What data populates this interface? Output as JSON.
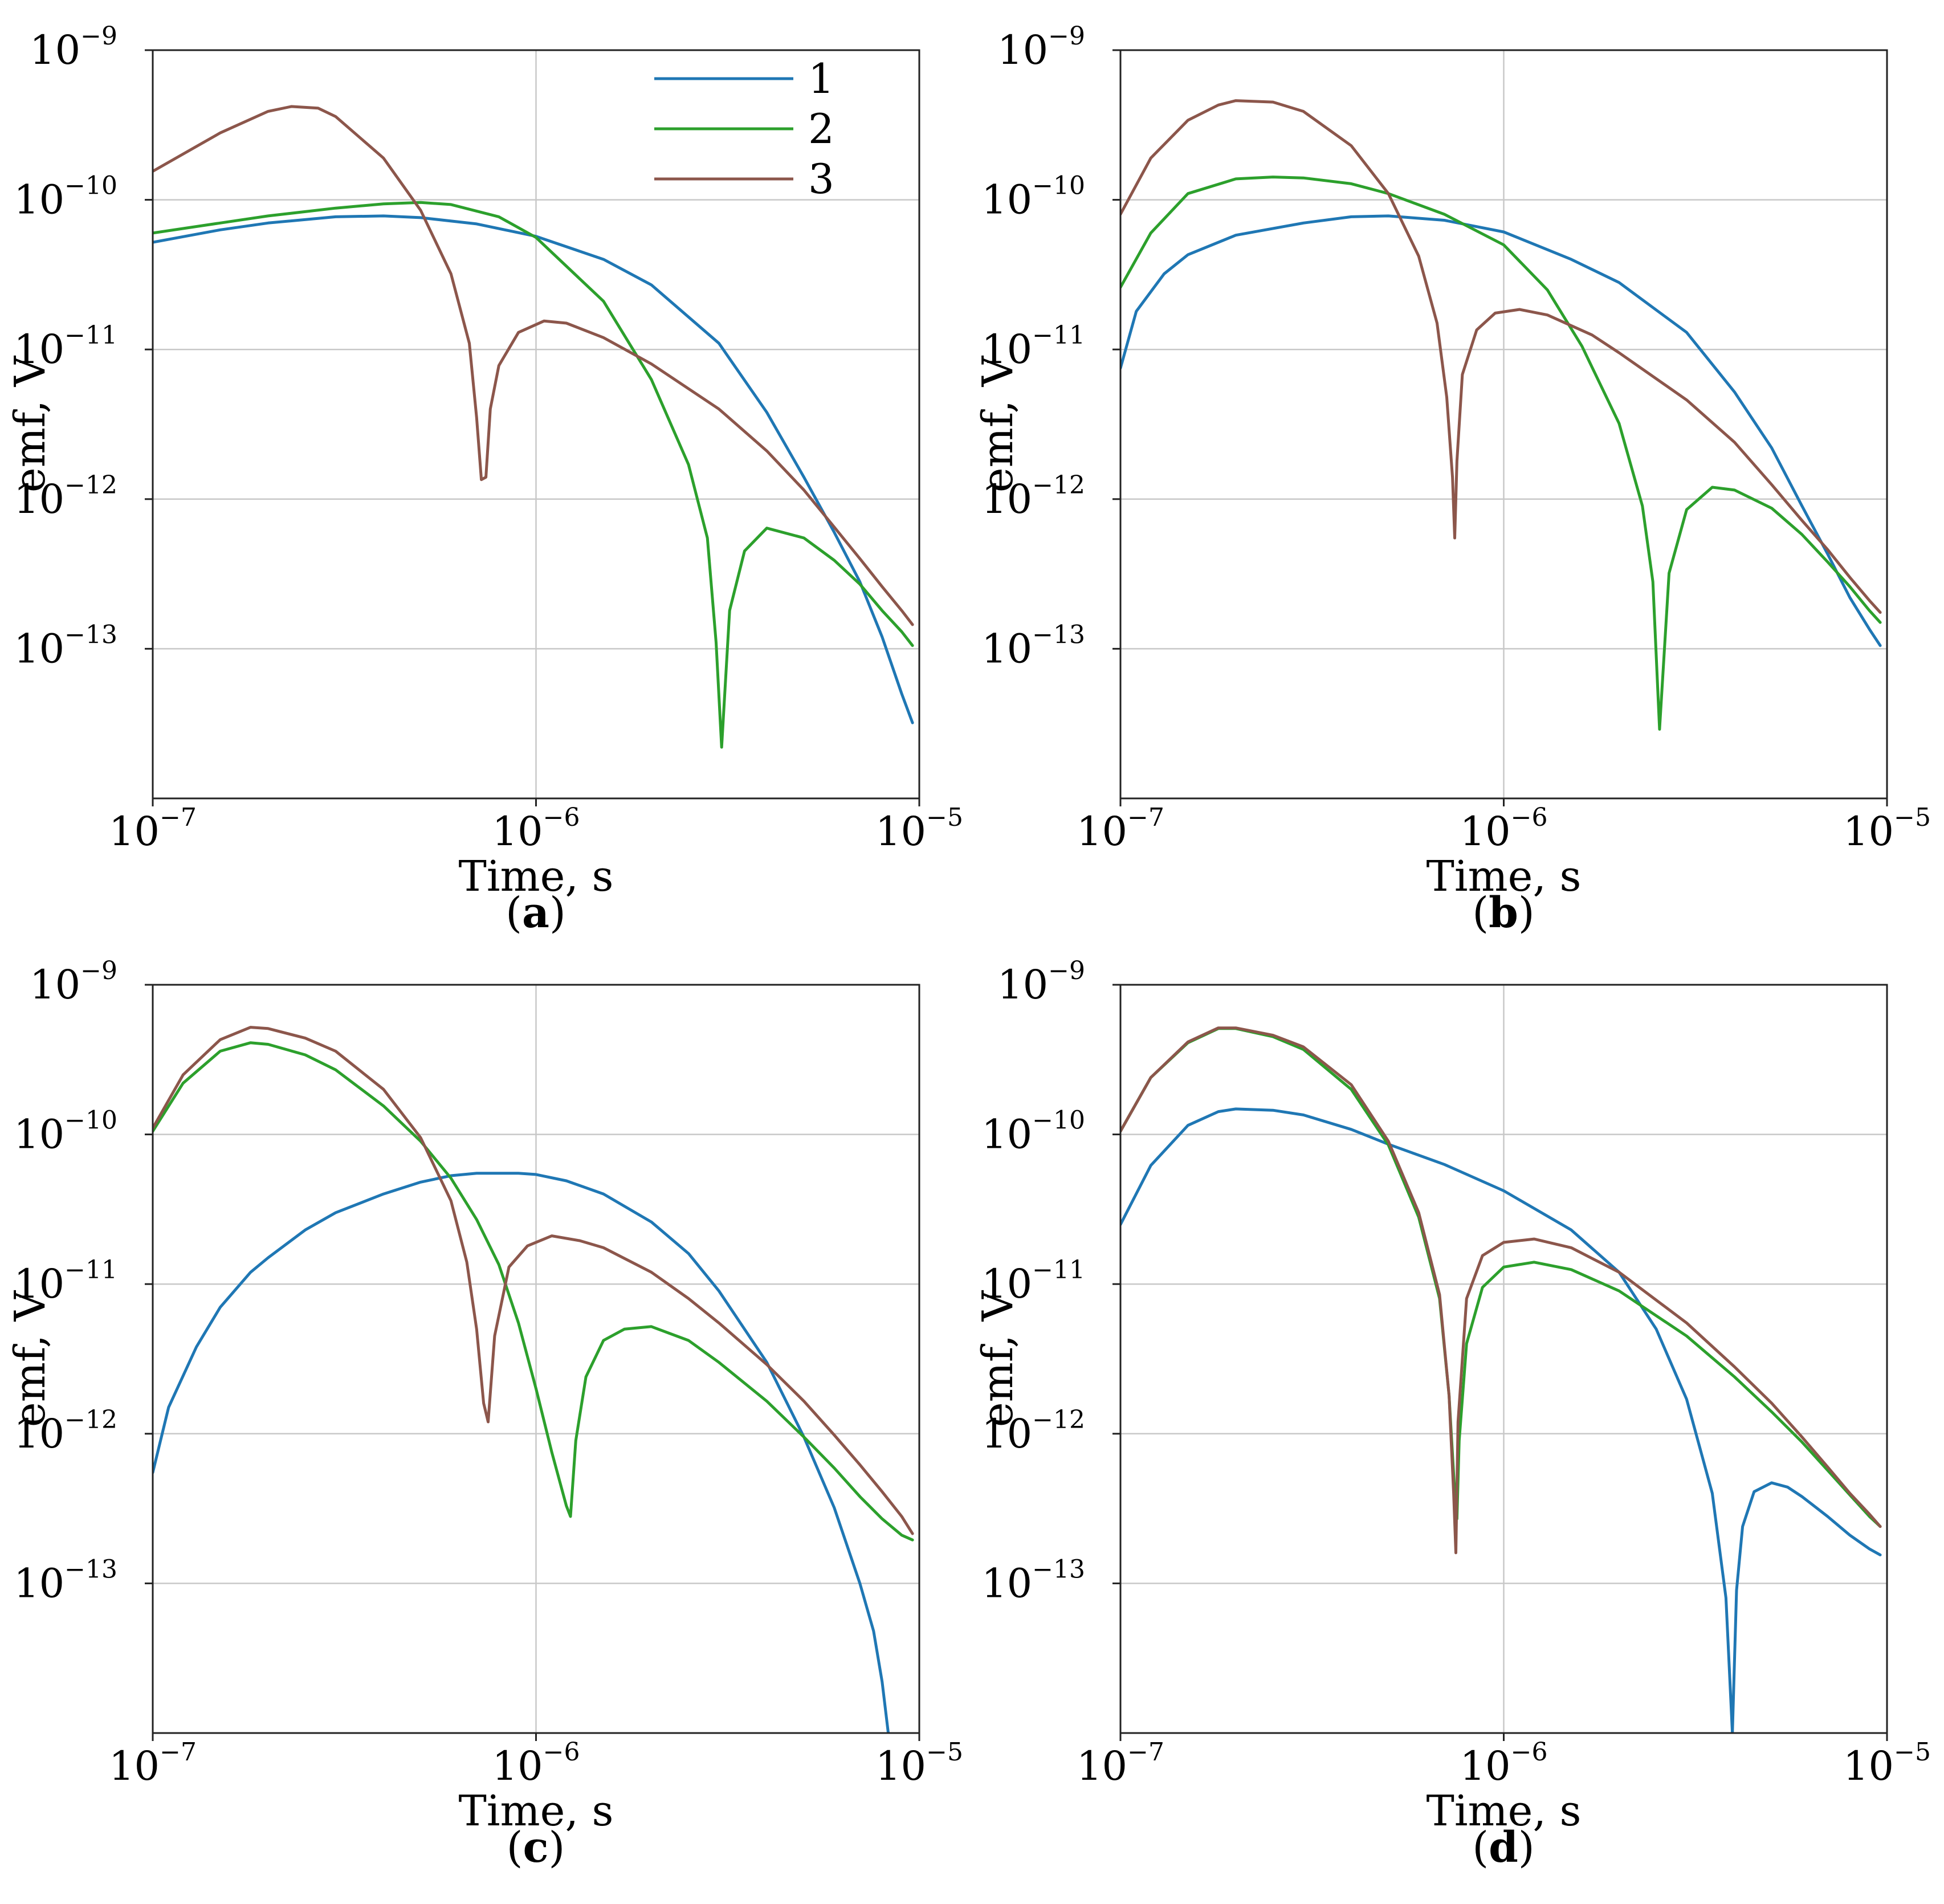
{
  "chart_data": [
    {
      "panel": "a",
      "type": "line",
      "xscale": "log",
      "yscale": "log",
      "xlim": [
        1e-07,
        1e-05
      ],
      "ylim": [
        1e-14,
        1e-09
      ],
      "xlabel": "Time, s",
      "ylabel": "emf, V",
      "xticks": [
        "10^-7",
        "10^-6",
        "10^-5"
      ],
      "yticks": [
        "10^-9",
        "10^-10",
        "10^-11",
        "10^-12",
        "10^-13"
      ],
      "grid": true,
      "legend": {
        "position": "top-right",
        "entries": [
          "1",
          "2",
          "3"
        ]
      },
      "series": [
        {
          "name": "1",
          "color": "#1f77b4",
          "x": [
            1e-07,
            1.5e-07,
            2e-07,
            3e-07,
            4e-07,
            5e-07,
            7e-07,
            1e-06,
            1.5e-06,
            2e-06,
            3e-06,
            4e-06,
            5e-06,
            6e-06,
            7e-06,
            8e-06,
            9e-06,
            9.6e-06
          ],
          "y": [
            5.2e-11,
            6.3e-11,
            7e-11,
            7.7e-11,
            7.8e-11,
            7.6e-11,
            6.9e-11,
            5.7e-11,
            4e-11,
            2.7e-11,
            1.1e-11,
            3.8e-12,
            1.4e-12,
            6e-13,
            2.8e-13,
            1.2e-13,
            5e-14,
            3.2e-14
          ]
        },
        {
          "name": "2",
          "color": "#2ca02c",
          "x": [
            1e-07,
            1.5e-07,
            2e-07,
            3e-07,
            4e-07,
            5e-07,
            6e-07,
            8e-07,
            1e-06,
            1.5e-06,
            2e-06,
            2.5e-06,
            2.8e-06,
            2.95e-06,
            3.05e-06,
            3.2e-06,
            3.5e-06,
            4e-06,
            5e-06,
            6e-06,
            7e-06,
            8e-06,
            9e-06,
            9.6e-06
          ],
          "y": [
            6e-11,
            7e-11,
            7.8e-11,
            8.8e-11,
            9.4e-11,
            9.6e-11,
            9.3e-11,
            7.7e-11,
            5.6e-11,
            2.1e-11,
            6.3e-12,
            1.7e-12,
            5.5e-13,
            1.1e-13,
            2.2e-14,
            1.8e-13,
            4.5e-13,
            6.4e-13,
            5.5e-13,
            3.9e-13,
            2.7e-13,
            1.8e-13,
            1.3e-13,
            1.05e-13
          ]
        },
        {
          "name": "3",
          "color": "#8c564b",
          "x": [
            1e-07,
            1.5e-07,
            2e-07,
            2.3e-07,
            2.7e-07,
            3e-07,
            4e-07,
            5e-07,
            6e-07,
            6.7e-07,
            7e-07,
            7.2e-07,
            7.4e-07,
            7.6e-07,
            8e-07,
            9e-07,
            1.05e-06,
            1.2e-06,
            1.5e-06,
            2e-06,
            3e-06,
            4e-06,
            5e-06,
            6e-06,
            7e-06,
            8e-06,
            9e-06,
            9.6e-06
          ],
          "y": [
            1.55e-10,
            2.8e-10,
            3.9e-10,
            4.2e-10,
            4.1e-10,
            3.6e-10,
            1.9e-10,
            8.5e-11,
            3.2e-11,
            1.1e-11,
            3.5e-12,
            1.35e-12,
            1.4e-12,
            4e-12,
            7.8e-12,
            1.3e-11,
            1.55e-11,
            1.5e-11,
            1.2e-11,
            8e-12,
            4e-12,
            2.1e-12,
            1.15e-12,
            6.5e-13,
            4e-13,
            2.6e-13,
            1.8e-13,
            1.45e-13
          ]
        }
      ]
    },
    {
      "panel": "b",
      "type": "line",
      "xscale": "log",
      "yscale": "log",
      "xlim": [
        1e-07,
        1e-05
      ],
      "ylim": [
        1e-14,
        1e-09
      ],
      "xlabel": "Time, s",
      "ylabel": "emf, V",
      "xticks": [
        "10^-7",
        "10^-6",
        "10^-5"
      ],
      "yticks": [
        "10^-9",
        "10^-10",
        "10^-11",
        "10^-12",
        "10^-13"
      ],
      "grid": true,
      "series": [
        {
          "name": "1",
          "color": "#1f77b4",
          "x": [
            1e-07,
            1.1e-07,
            1.3e-07,
            1.5e-07,
            2e-07,
            3e-07,
            4e-07,
            5e-07,
            7e-07,
            1e-06,
            1.5e-06,
            2e-06,
            3e-06,
            4e-06,
            5e-06,
            6e-06,
            7e-06,
            8e-06,
            9e-06,
            9.6e-06
          ],
          "y": [
            7.5e-12,
            1.8e-11,
            3.2e-11,
            4.3e-11,
            5.8e-11,
            7e-11,
            7.7e-11,
            7.8e-11,
            7.3e-11,
            6.1e-11,
            4e-11,
            2.8e-11,
            1.3e-11,
            5.2e-12,
            2.2e-12,
            9e-13,
            4.3e-13,
            2.2e-13,
            1.35e-13,
            1.05e-13
          ]
        },
        {
          "name": "2",
          "color": "#2ca02c",
          "x": [
            1e-07,
            1.2e-07,
            1.5e-07,
            2e-07,
            2.5e-07,
            3e-07,
            4e-07,
            5e-07,
            7e-07,
            1e-06,
            1.3e-06,
            1.6e-06,
            2e-06,
            2.3e-06,
            2.45e-06,
            2.55e-06,
            2.7e-06,
            3e-06,
            3.5e-06,
            4e-06,
            5e-06,
            6e-06,
            7e-06,
            8e-06,
            9e-06,
            9.6e-06
          ],
          "y": [
            2.6e-11,
            6e-11,
            1.1e-10,
            1.38e-10,
            1.42e-10,
            1.4e-10,
            1.28e-10,
            1.1e-10,
            8e-11,
            5e-11,
            2.5e-11,
            1.05e-11,
            3.2e-12,
            9e-13,
            2.8e-13,
            2.9e-14,
            3.2e-13,
            8.5e-13,
            1.2e-12,
            1.15e-12,
            8.7e-13,
            5.8e-13,
            3.8e-13,
            2.6e-13,
            1.8e-13,
            1.5e-13
          ]
        },
        {
          "name": "3",
          "color": "#8c564b",
          "x": [
            1e-07,
            1.2e-07,
            1.5e-07,
            1.8e-07,
            2e-07,
            2.5e-07,
            3e-07,
            4e-07,
            5e-07,
            6e-07,
            6.7e-07,
            7.1e-07,
            7.35e-07,
            7.45e-07,
            7.55e-07,
            7.8e-07,
            8.5e-07,
            9.5e-07,
            1.1e-06,
            1.3e-06,
            1.7e-06,
            2e-06,
            3e-06,
            4e-06,
            5e-06,
            6e-06,
            7e-06,
            8e-06,
            9e-06,
            9.6e-06
          ],
          "y": [
            8e-11,
            1.9e-10,
            3.4e-10,
            4.3e-10,
            4.6e-10,
            4.5e-10,
            3.9e-10,
            2.3e-10,
            1.1e-10,
            4.2e-11,
            1.5e-11,
            4.8e-12,
            1.4e-12,
            5.5e-13,
            1.8e-12,
            6.8e-12,
            1.35e-11,
            1.75e-11,
            1.85e-11,
            1.7e-11,
            1.25e-11,
            9.5e-12,
            4.6e-12,
            2.4e-12,
            1.25e-12,
            7.2e-13,
            4.6e-13,
            3e-13,
            2.1e-13,
            1.75e-13
          ]
        }
      ]
    },
    {
      "panel": "c",
      "type": "line",
      "xscale": "log",
      "yscale": "log",
      "xlim": [
        1e-07,
        1e-05
      ],
      "ylim": [
        1e-14,
        1e-09
      ],
      "xlabel": "Time, s",
      "ylabel": "emf, V",
      "xticks": [
        "10^-7",
        "10^-6",
        "10^-5"
      ],
      "yticks": [
        "10^-9",
        "10^-10",
        "10^-11",
        "10^-12",
        "10^-13"
      ],
      "grid": true,
      "series": [
        {
          "name": "1",
          "color": "#1f77b4",
          "x": [
            1e-07,
            1.1e-07,
            1.3e-07,
            1.5e-07,
            1.8e-07,
            2e-07,
            2.5e-07,
            3e-07,
            4e-07,
            5e-07,
            6e-07,
            7e-07,
            9e-07,
            1e-06,
            1.2e-06,
            1.5e-06,
            2e-06,
            2.5e-06,
            3e-06,
            4e-06,
            5e-06,
            6e-06,
            7e-06,
            7.6e-06,
            8e-06,
            8.3e-06
          ],
          "y": [
            5.5e-13,
            1.5e-12,
            3.8e-12,
            7e-12,
            1.2e-11,
            1.5e-11,
            2.3e-11,
            3e-11,
            4e-11,
            4.8e-11,
            5.3e-11,
            5.5e-11,
            5.5e-11,
            5.4e-11,
            4.9e-11,
            4e-11,
            2.6e-11,
            1.6e-11,
            9e-12,
            3e-12,
            9.5e-13,
            3.2e-13,
            1e-13,
            4.8e-14,
            2.2e-14,
            1e-14
          ]
        },
        {
          "name": "2",
          "color": "#2ca02c",
          "x": [
            1e-07,
            1.2e-07,
            1.5e-07,
            1.8e-07,
            2e-07,
            2.5e-07,
            3e-07,
            4e-07,
            5e-07,
            6e-07,
            7e-07,
            8e-07,
            9e-07,
            1e-06,
            1.1e-06,
            1.2e-06,
            1.23e-06,
            1.27e-06,
            1.35e-06,
            1.5e-06,
            1.7e-06,
            2e-06,
            2.5e-06,
            3e-06,
            4e-06,
            5e-06,
            6e-06,
            7e-06,
            8e-06,
            9e-06,
            9.6e-06
          ],
          "y": [
            1.05e-10,
            2.2e-10,
            3.6e-10,
            4.1e-10,
            4e-10,
            3.4e-10,
            2.7e-10,
            1.55e-10,
            9e-11,
            5.1e-11,
            2.7e-11,
            1.35e-11,
            5.5e-12,
            2e-12,
            7.5e-13,
            3.3e-13,
            2.8e-13,
            9e-13,
            2.4e-12,
            4.2e-12,
            5e-12,
            5.2e-12,
            4.2e-12,
            3e-12,
            1.65e-12,
            9.5e-13,
            5.9e-13,
            3.8e-13,
            2.7e-13,
            2.1e-13,
            1.95e-13
          ]
        },
        {
          "name": "3",
          "color": "#8c564b",
          "x": [
            1e-07,
            1.2e-07,
            1.5e-07,
            1.8e-07,
            2e-07,
            2.5e-07,
            3e-07,
            4e-07,
            5e-07,
            6e-07,
            6.6e-07,
            7e-07,
            7.3e-07,
            7.5e-07,
            7.8e-07,
            8.5e-07,
            9.5e-07,
            1.1e-06,
            1.3e-06,
            1.5e-06,
            2e-06,
            2.5e-06,
            3e-06,
            4e-06,
            5e-06,
            6e-06,
            7e-06,
            8e-06,
            9e-06,
            9.6e-06
          ],
          "y": [
            1.1e-10,
            2.5e-10,
            4.3e-10,
            5.2e-10,
            5.1e-10,
            4.4e-10,
            3.6e-10,
            2e-10,
            9.5e-11,
            3.6e-11,
            1.4e-11,
            5e-12,
            1.6e-12,
            1.2e-12,
            4.5e-12,
            1.3e-11,
            1.8e-11,
            2.1e-11,
            1.95e-11,
            1.75e-11,
            1.2e-11,
            8e-12,
            5.5e-12,
            2.9e-12,
            1.65e-12,
            9.8e-13,
            6.2e-13,
            4.1e-13,
            2.8e-13,
            2.15e-13
          ]
        }
      ]
    },
    {
      "panel": "d",
      "type": "line",
      "xscale": "log",
      "yscale": "log",
      "xlim": [
        1e-07,
        1e-05
      ],
      "ylim": [
        1e-14,
        1e-09
      ],
      "xlabel": "Time, s",
      "ylabel": "emf, V",
      "xticks": [
        "10^-7",
        "10^-6",
        "10^-5"
      ],
      "yticks": [
        "10^-9",
        "10^-10",
        "10^-11",
        "10^-12",
        "10^-13"
      ],
      "grid": true,
      "series": [
        {
          "name": "1",
          "color": "#1f77b4",
          "x": [
            1e-07,
            1.2e-07,
            1.5e-07,
            1.8e-07,
            2e-07,
            2.5e-07,
            3e-07,
            4e-07,
            5e-07,
            7e-07,
            1e-06,
            1.5e-06,
            2e-06,
            2.5e-06,
            3e-06,
            3.5e-06,
            3.8e-06,
            3.95e-06,
            4.05e-06,
            4.2e-06,
            4.5e-06,
            5e-06,
            5.5e-06,
            6e-06,
            7e-06,
            8e-06,
            9e-06,
            9.6e-06
          ],
          "y": [
            2.5e-11,
            6.2e-11,
            1.15e-10,
            1.42e-10,
            1.48e-10,
            1.45e-10,
            1.35e-10,
            1.08e-10,
            8.6e-11,
            6.3e-11,
            4.2e-11,
            2.3e-11,
            1.2e-11,
            5e-12,
            1.7e-12,
            4e-13,
            8e-14,
            1e-14,
            9e-14,
            2.4e-13,
            4.1e-13,
            4.7e-13,
            4.4e-13,
            3.8e-13,
            2.8e-13,
            2.1e-13,
            1.7e-13,
            1.55e-13
          ]
        },
        {
          "name": "2",
          "color": "#2ca02c",
          "x": [
            1e-07,
            1.2e-07,
            1.5e-07,
            1.8e-07,
            2e-07,
            2.5e-07,
            3e-07,
            4e-07,
            5e-07,
            6e-07,
            6.8e-07,
            7.2e-07,
            7.45e-07,
            7.55e-07,
            7.65e-07,
            8e-07,
            8.8e-07,
            1e-06,
            1.2e-06,
            1.5e-06,
            2e-06,
            3e-06,
            4e-06,
            5e-06,
            6e-06,
            7e-06,
            8e-06,
            9e-06,
            9.6e-06
          ],
          "y": [
            1.05e-10,
            2.4e-10,
            4.1e-10,
            5.1e-10,
            5.1e-10,
            4.5e-10,
            3.7e-10,
            2e-10,
            8.5e-11,
            2.8e-11,
            8e-12,
            1.8e-12,
            4e-13,
            2.7e-13,
            9e-13,
            4e-12,
            9.5e-12,
            1.3e-11,
            1.4e-11,
            1.25e-11,
            9e-12,
            4.5e-12,
            2.4e-12,
            1.4e-12,
            8.8e-13,
            5.7e-13,
            3.9e-13,
            2.8e-13,
            2.4e-13
          ]
        },
        {
          "name": "3",
          "color": "#8c564b",
          "x": [
            1e-07,
            1.2e-07,
            1.5e-07,
            1.8e-07,
            2e-07,
            2.5e-07,
            3e-07,
            4e-07,
            5e-07,
            6e-07,
            6.8e-07,
            7.2e-07,
            7.4e-07,
            7.5e-07,
            7.6e-07,
            8e-07,
            8.8e-07,
            1e-06,
            1.2e-06,
            1.5e-06,
            2e-06,
            3e-06,
            4e-06,
            5e-06,
            6e-06,
            7e-06,
            8e-06,
            9e-06,
            9.6e-06
          ],
          "y": [
            1.05e-10,
            2.4e-10,
            4.15e-10,
            5.15e-10,
            5.15e-10,
            4.6e-10,
            3.85e-10,
            2.15e-10,
            9e-11,
            3e-11,
            8.5e-12,
            1.8e-12,
            4e-13,
            1.6e-13,
            1.2e-12,
            8e-12,
            1.55e-11,
            1.9e-11,
            2e-11,
            1.75e-11,
            1.2e-11,
            5.5e-12,
            2.8e-12,
            1.6e-12,
            9.5e-13,
            6e-13,
            4e-13,
            2.9e-13,
            2.4e-13
          ]
        }
      ]
    }
  ]
}
